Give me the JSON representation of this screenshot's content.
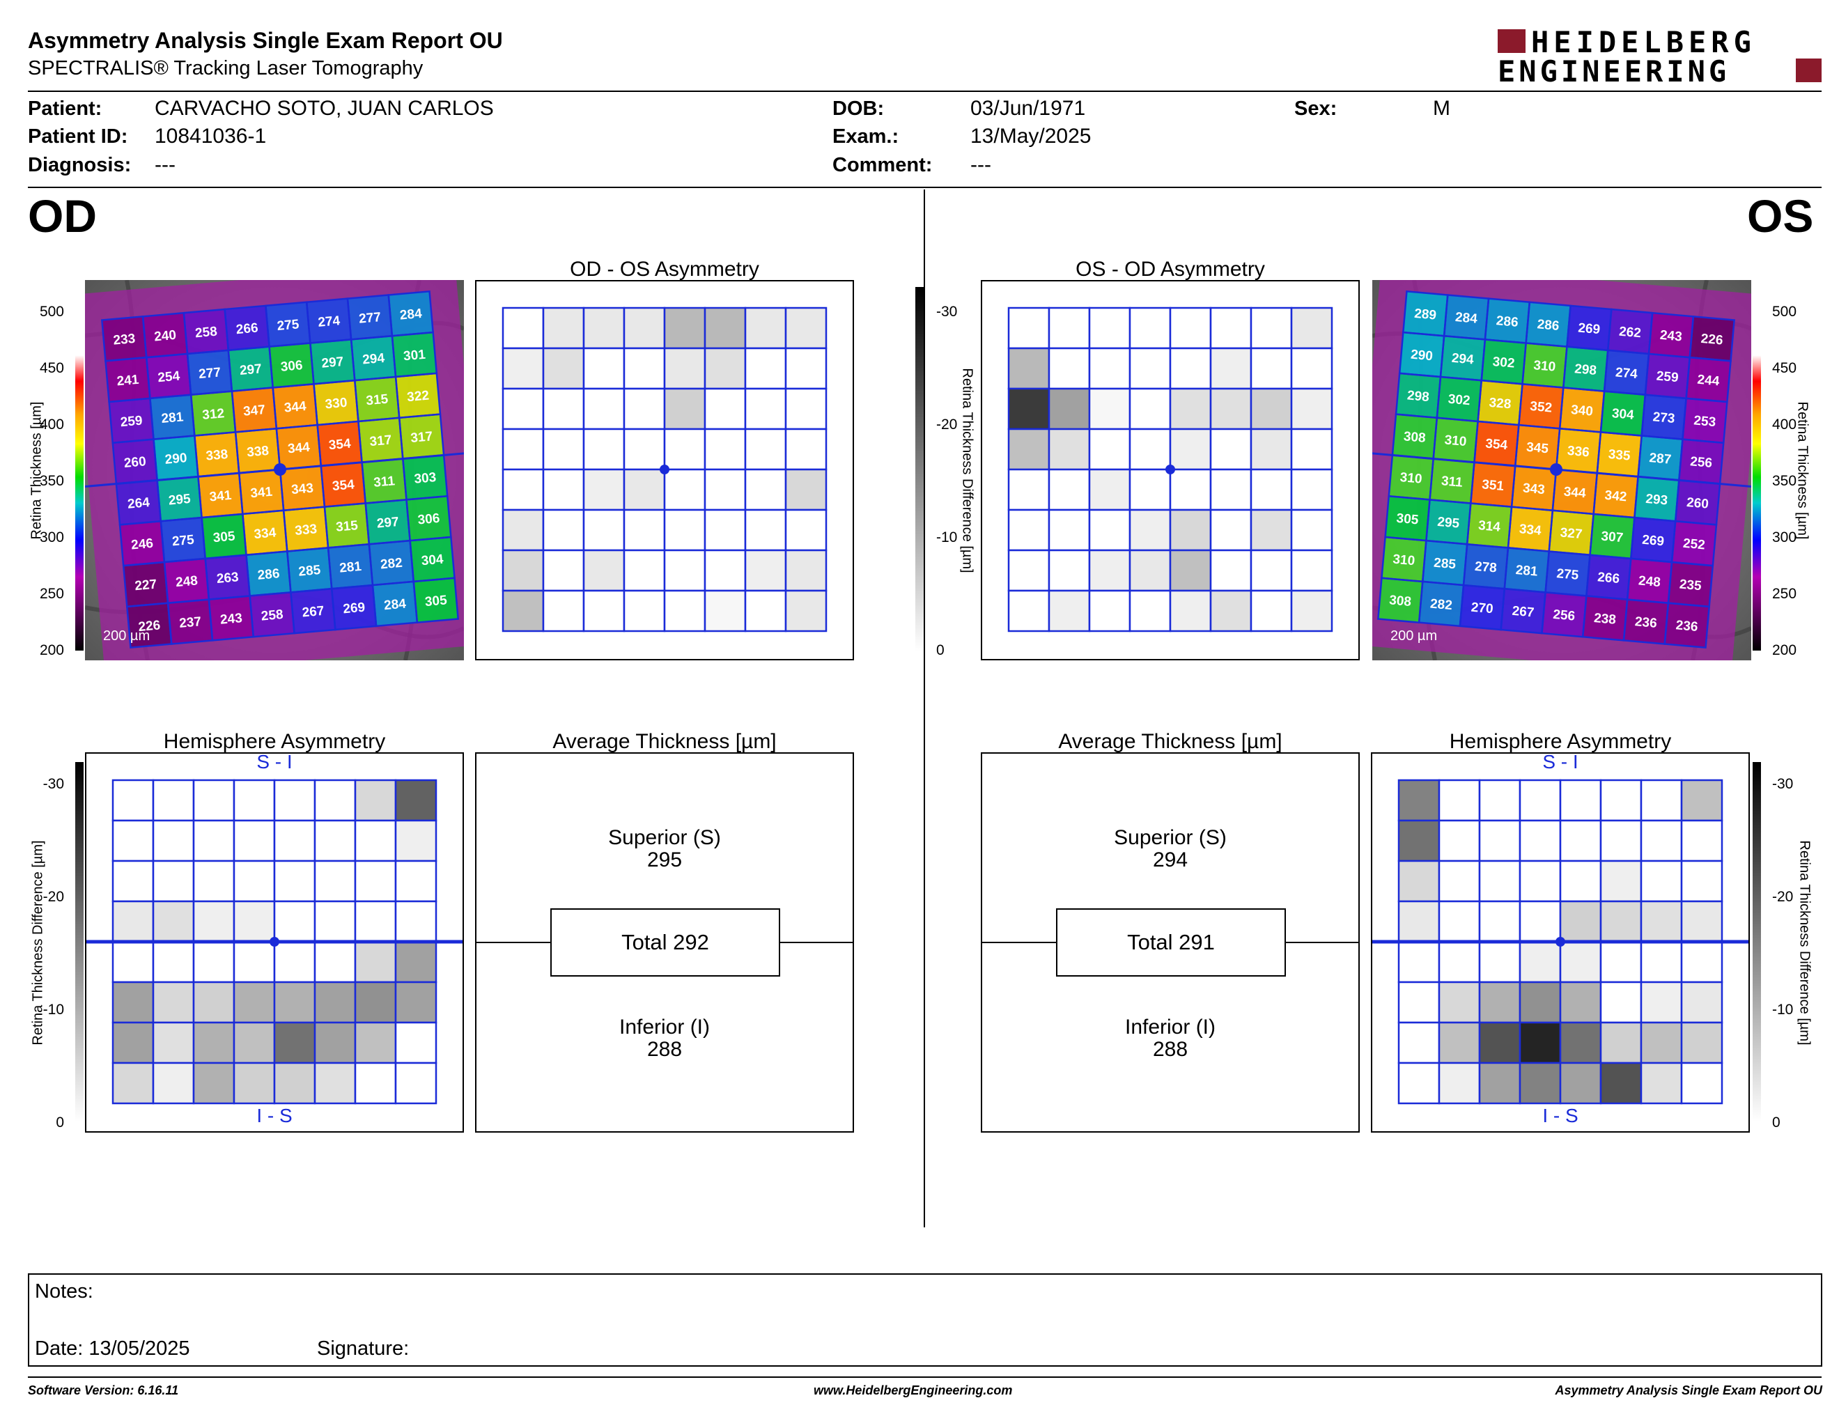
{
  "header": {
    "title": "Asymmetry Analysis Single Exam Report OU",
    "subtitle": "SPECTRALIS® Tracking Laser Tomography",
    "logo_line1": "HEIDELBERG",
    "logo_line2": "ENGINEERING",
    "brand_color": "#8b1a2b"
  },
  "patient": {
    "patient_label": "Patient:",
    "patient_value": "CARVACHO SOTO, JUAN CARLOS",
    "id_label": "Patient ID:",
    "id_value": "10841036-1",
    "diagnosis_label": "Diagnosis:",
    "diagnosis_value": "---",
    "dob_label": "DOB:",
    "dob_value": "03/Jun/1971",
    "exam_label": "Exam.:",
    "exam_value": "13/May/2025",
    "comment_label": "Comment:",
    "comment_value": "---",
    "sex_label": "Sex:",
    "sex_value": "M"
  },
  "od": {
    "eye_label": "OD",
    "asym_title": "OD - OS Asymmetry",
    "hemi_title": "Hemisphere Asymmetry",
    "avg_title": "Average Thickness [µm]",
    "superior_label": "Superior (S)",
    "superior_value": "295",
    "total_label": "Total 292",
    "inferior_label": "Inferior (I)",
    "inferior_value": "288",
    "scale_bar": "200 µm",
    "thickness_grid": [
      [
        233,
        240,
        258,
        266,
        275,
        274,
        277,
        284
      ],
      [
        241,
        254,
        277,
        297,
        306,
        297,
        294,
        301
      ],
      [
        259,
        281,
        312,
        347,
        344,
        330,
        315,
        322
      ],
      [
        260,
        290,
        338,
        338,
        344,
        354,
        317,
        317
      ],
      [
        264,
        295,
        341,
        341,
        343,
        354,
        311,
        303
      ],
      [
        246,
        275,
        305,
        334,
        333,
        315,
        297,
        306
      ],
      [
        227,
        248,
        263,
        286,
        285,
        281,
        282,
        304
      ],
      [
        226,
        237,
        243,
        258,
        267,
        269,
        284,
        305
      ]
    ],
    "asym_grid": [
      [
        0,
        3,
        3,
        3,
        9,
        9,
        3,
        3
      ],
      [
        2,
        4,
        0,
        0,
        3,
        4,
        0,
        0
      ],
      [
        0,
        0,
        0,
        0,
        6,
        0,
        0,
        0
      ],
      [
        0,
        0,
        0,
        0,
        0,
        0,
        0,
        0
      ],
      [
        0,
        0,
        2,
        3,
        0,
        0,
        0,
        5
      ],
      [
        3,
        0,
        0,
        0,
        0,
        0,
        0,
        0
      ],
      [
        5,
        0,
        3,
        0,
        0,
        0,
        2,
        3
      ],
      [
        8,
        0,
        0,
        0,
        0,
        1,
        0,
        3
      ]
    ],
    "hemi_grid": [
      [
        0,
        0,
        0,
        0,
        0,
        0,
        5,
        20
      ],
      [
        0,
        0,
        0,
        0,
        0,
        0,
        0,
        2
      ],
      [
        0,
        0,
        0,
        0,
        0,
        0,
        0,
        0
      ],
      [
        3,
        4,
        2,
        2,
        0,
        0,
        0,
        0
      ],
      [
        0,
        0,
        0,
        0,
        0,
        0,
        5,
        12
      ],
      [
        12,
        5,
        6,
        10,
        10,
        12,
        14,
        12
      ],
      [
        12,
        4,
        10,
        8,
        18,
        12,
        8,
        0
      ],
      [
        5,
        2,
        10,
        6,
        6,
        4,
        0,
        0
      ]
    ]
  },
  "os": {
    "eye_label": "OS",
    "asym_title": "OS - OD Asymmetry",
    "hemi_title": "Hemisphere Asymmetry",
    "avg_title": "Average Thickness [µm]",
    "superior_label": "Superior (S)",
    "superior_value": "294",
    "total_label": "Total 291",
    "inferior_label": "Inferior (I)",
    "inferior_value": "288",
    "scale_bar": "200 µm",
    "thickness_grid": [
      [
        289,
        284,
        286,
        286,
        269,
        262,
        243,
        226
      ],
      [
        290,
        294,
        302,
        310,
        298,
        274,
        259,
        244
      ],
      [
        298,
        302,
        328,
        352,
        340,
        304,
        273,
        253
      ],
      [
        308,
        310,
        354,
        345,
        336,
        335,
        287,
        256
      ],
      [
        310,
        311,
        351,
        343,
        344,
        342,
        293,
        260
      ],
      [
        305,
        295,
        314,
        334,
        327,
        307,
        269,
        252
      ],
      [
        310,
        285,
        278,
        281,
        275,
        266,
        248,
        235
      ],
      [
        308,
        282,
        270,
        267,
        256,
        238,
        236,
        236
      ]
    ],
    "asym_grid": [
      [
        0,
        0,
        0,
        0,
        0,
        0,
        0,
        3
      ],
      [
        9,
        0,
        0,
        0,
        0,
        2,
        0,
        0
      ],
      [
        25,
        12,
        1,
        0,
        4,
        4,
        6,
        2
      ],
      [
        8,
        4,
        0,
        0,
        2,
        0,
        3,
        0
      ],
      [
        0,
        0,
        2,
        0,
        0,
        0,
        0,
        0
      ],
      [
        0,
        0,
        0,
        2,
        5,
        0,
        4,
        0
      ],
      [
        0,
        0,
        2,
        3,
        8,
        0,
        0,
        0
      ],
      [
        0,
        2,
        0,
        0,
        2,
        4,
        0,
        2
      ]
    ],
    "hemi_grid": [
      [
        16,
        0,
        0,
        0,
        0,
        0,
        0,
        8
      ],
      [
        18,
        0,
        0,
        0,
        0,
        0,
        0,
        0
      ],
      [
        5,
        0,
        0,
        0,
        0,
        2,
        0,
        0
      ],
      [
        3,
        0,
        0,
        0,
        6,
        5,
        4,
        3
      ],
      [
        0,
        0,
        0,
        2,
        2,
        0,
        0,
        0
      ],
      [
        0,
        5,
        10,
        14,
        10,
        0,
        2,
        3
      ],
      [
        0,
        8,
        22,
        28,
        18,
        6,
        8,
        6
      ],
      [
        0,
        2,
        12,
        16,
        12,
        22,
        4,
        0
      ]
    ]
  },
  "scales": {
    "thickness_ticks": [
      "500",
      "450",
      "400",
      "350",
      "300",
      "250",
      "200"
    ],
    "thickness_label": "Retina Thickness [µm]",
    "diff_ticks": [
      "-30",
      "-20",
      "-10",
      "0"
    ],
    "diff_label": "Retina Thickness Difference [µm]"
  },
  "labels": {
    "si": "S - I",
    "is": "I - S"
  },
  "notes": {
    "notes_label": "Notes:",
    "date_label": "Date: 13/05/2025",
    "signature_label": "Signature:"
  },
  "footer": {
    "software": "Software Version: 6.16.11",
    "website": "www.HeidelbergEngineering.com",
    "report": "Asymmetry Analysis Single Exam Report OU"
  }
}
